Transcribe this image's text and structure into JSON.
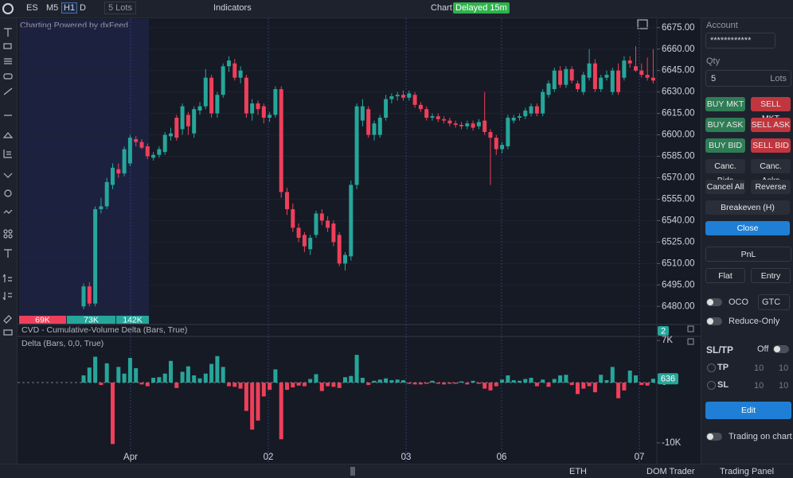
{
  "toolbar": {
    "symbol": "ES",
    "intervals": [
      "M5",
      "H1",
      "D"
    ],
    "lots": "5 Lots",
    "indicators": "Indicators",
    "chart": "Chart",
    "delayed": "Delayed 15m"
  },
  "chart_data": {
    "type": "candlestick",
    "watermark": "Charting Powered by dxFeed",
    "up_color": "#26a69a",
    "down_color": "#ef3f5a",
    "ylim": [
      6469,
      6681
    ],
    "yticks": [
      {
        "value": 6480,
        "label": "6480.00"
      },
      {
        "value": 6495,
        "label": "6495.00"
      },
      {
        "value": 6510,
        "label": "6510.00"
      },
      {
        "value": 6525,
        "label": "6525.00"
      },
      {
        "value": 6540,
        "label": "6540.00"
      },
      {
        "value": 6555,
        "label": "6555.00"
      },
      {
        "value": 6570,
        "label": "6570.00"
      },
      {
        "value": 6585,
        "label": "6585.00"
      },
      {
        "value": 6600,
        "label": "6600.00"
      },
      {
        "value": 6615,
        "label": "6615.00"
      },
      {
        "value": 6630,
        "label": "6630.00"
      },
      {
        "value": 6645,
        "label": "6645.00"
      },
      {
        "value": 6660,
        "label": "6660.00"
      },
      {
        "value": 6675,
        "label": "6675.00"
      }
    ],
    "x_labels": [
      "Apr",
      "02",
      "03",
      "06",
      "07"
    ],
    "volume_labels": [
      "69K",
      "73K",
      "142K"
    ],
    "candles": [
      [
        6480,
        6496,
        6478,
        6494
      ],
      [
        6494,
        6497,
        6480,
        6482
      ],
      [
        6482,
        6550,
        6480,
        6548
      ],
      [
        6548,
        6556,
        6545,
        6550
      ],
      [
        6550,
        6570,
        6548,
        6567
      ],
      [
        6565,
        6580,
        6562,
        6577
      ],
      [
        6576,
        6580,
        6570,
        6573
      ],
      [
        6573,
        6592,
        6571,
        6590
      ],
      [
        6580,
        6600,
        6578,
        6598
      ],
      [
        6597,
        6599,
        6592,
        6595
      ],
      [
        6595,
        6597,
        6590,
        6591
      ],
      [
        6592,
        6594,
        6583,
        6585
      ],
      [
        6584,
        6588,
        6582,
        6586
      ],
      [
        6586,
        6592,
        6584,
        6590
      ],
      [
        6588,
        6602,
        6586,
        6600
      ],
      [
        6599,
        6605,
        6596,
        6601
      ],
      [
        6612,
        6614,
        6596,
        6598
      ],
      [
        6604,
        6622,
        6600,
        6620
      ],
      [
        6614,
        6616,
        6600,
        6606
      ],
      [
        6601,
        6620,
        6598,
        6618
      ],
      [
        6617,
        6623,
        6614,
        6620
      ],
      [
        6620,
        6646,
        6618,
        6640
      ],
      [
        6640,
        6642,
        6612,
        6615
      ],
      [
        6615,
        6630,
        6612,
        6628
      ],
      [
        6628,
        6650,
        6626,
        6648
      ],
      [
        6648,
        6655,
        6644,
        6652
      ],
      [
        6650,
        6653,
        6638,
        6640
      ],
      [
        6640,
        6648,
        6636,
        6645
      ],
      [
        6640,
        6642,
        6612,
        6615
      ],
      [
        6615,
        6625,
        6610,
        6622
      ],
      [
        6622,
        6624,
        6614,
        6618
      ],
      [
        6620,
        6622,
        6608,
        6612
      ],
      [
        6612,
        6616,
        6609,
        6614
      ],
      [
        6614,
        6634,
        6612,
        6632
      ],
      [
        6632,
        6634,
        6556,
        6560
      ],
      [
        6560,
        6563,
        6544,
        6548
      ],
      [
        6548,
        6552,
        6532,
        6535
      ],
      [
        6535,
        6538,
        6525,
        6528
      ],
      [
        6530,
        6532,
        6518,
        6522
      ],
      [
        6520,
        6530,
        6516,
        6528
      ],
      [
        6530,
        6547,
        6528,
        6545
      ],
      [
        6545,
        6548,
        6537,
        6540
      ],
      [
        6540,
        6543,
        6532,
        6535
      ],
      [
        6538,
        6540,
        6522,
        6525
      ],
      [
        6530,
        6532,
        6508,
        6510
      ],
      [
        6510,
        6518,
        6505,
        6516
      ],
      [
        6515,
        6568,
        6512,
        6565
      ],
      [
        6565,
        6622,
        6562,
        6620
      ],
      [
        6610,
        6625,
        6606,
        6620
      ],
      [
        6618,
        6620,
        6598,
        6600
      ],
      [
        6600,
        6610,
        6596,
        6608
      ],
      [
        6600,
        6614,
        6598,
        6612
      ],
      [
        6612,
        6628,
        6610,
        6625
      ],
      [
        6625,
        6629,
        6622,
        6627
      ],
      [
        6627,
        6630,
        6624,
        6628
      ],
      [
        6628,
        6631,
        6624,
        6626
      ],
      [
        6626,
        6631,
        6624,
        6629
      ],
      [
        6628,
        6630,
        6619,
        6621
      ],
      [
        6621,
        6623,
        6616,
        6618
      ],
      [
        6618,
        6620,
        6610,
        6612
      ],
      [
        6612,
        6615,
        6610,
        6613
      ],
      [
        6613,
        6615,
        6609,
        6611
      ],
      [
        6611,
        6613,
        6608,
        6610
      ],
      [
        6610,
        6612,
        6606,
        6608
      ],
      [
        6608,
        6610,
        6605,
        6607
      ],
      [
        6607,
        6609,
        6604,
        6606
      ],
      [
        6606,
        6610,
        6604,
        6608
      ],
      [
        6608,
        6610,
        6603,
        6605
      ],
      [
        6606,
        6611,
        6604,
        6609
      ],
      [
        6610,
        6630,
        6600,
        6602
      ],
      [
        6602,
        6604,
        6565,
        6598
      ],
      [
        6598,
        6600,
        6586,
        6590
      ],
      [
        6590,
        6595,
        6587,
        6593
      ],
      [
        6592,
        6614,
        6590,
        6612
      ],
      [
        6610,
        6614,
        6608,
        6612
      ],
      [
        6612,
        6615,
        6610,
        6613
      ],
      [
        6613,
        6619,
        6611,
        6617
      ],
      [
        6615,
        6622,
        6613,
        6620
      ],
      [
        6620,
        6622,
        6613,
        6615
      ],
      [
        6615,
        6632,
        6613,
        6630
      ],
      [
        6628,
        6638,
        6626,
        6636
      ],
      [
        6632,
        6647,
        6630,
        6645
      ],
      [
        6645,
        6648,
        6633,
        6635
      ],
      [
        6635,
        6648,
        6633,
        6646
      ],
      [
        6646,
        6648,
        6636,
        6638
      ],
      [
        6636,
        6638,
        6630,
        6632
      ],
      [
        6630,
        6644,
        6628,
        6642
      ],
      [
        6640,
        6660,
        6638,
        6650
      ],
      [
        6650,
        6653,
        6630,
        6632
      ],
      [
        6632,
        6642,
        6630,
        6640
      ],
      [
        6640,
        6645,
        6638,
        6642
      ],
      [
        6630,
        6647,
        6628,
        6645
      ],
      [
        6645,
        6650,
        6628,
        6630
      ],
      [
        6640,
        6655,
        6638,
        6652
      ],
      [
        6652,
        6655,
        6647,
        6650
      ],
      [
        6648,
        6662,
        6644,
        6645
      ],
      [
        6645,
        6650,
        6640,
        6642
      ],
      [
        6642,
        6654,
        6638,
        6640
      ],
      [
        6640,
        6660,
        6636,
        6638
      ]
    ],
    "cvd": {
      "title": "CVD - Cumulative-Volume Delta (Bars, True)",
      "value": "2"
    },
    "delta": {
      "title": "Delta (Bars, 0,0, True)",
      "ylim": [
        -12400,
        7400
      ],
      "yticks": [
        {
          "value": 7000,
          "label": "7K"
        },
        0,
        {
          "value": -10000,
          "label": "-10K"
        }
      ],
      "values": [
        1200,
        2500,
        4300,
        -400,
        3200,
        -10200,
        2600,
        1500,
        4100,
        2400,
        -300,
        -600,
        800,
        900,
        1500,
        3600,
        -900,
        1800,
        2700,
        1200,
        700,
        1500,
        3100,
        4400,
        2600,
        -600,
        -700,
        -1000,
        -4700,
        -7800,
        -6300,
        -2300,
        -1200,
        2200,
        -9400,
        -1200,
        -800,
        -500,
        -600,
        600,
        1400,
        -1400,
        -600,
        -700,
        -900,
        900,
        1100,
        4600,
        800,
        -400,
        300,
        500,
        700,
        400,
        500,
        400,
        -200,
        -300,
        -300,
        -200,
        300,
        -200,
        -300,
        -200,
        -200,
        200,
        -300,
        300,
        -200,
        -1000,
        -1300,
        -600,
        500,
        1200,
        400,
        300,
        600,
        800,
        -600,
        500,
        -700,
        600,
        1200,
        1300,
        -400,
        -1900,
        -1000,
        -600,
        -1600,
        1300,
        400,
        2600,
        -2600,
        -1300,
        2000,
        1200,
        -400,
        -500,
        636
      ]
    }
  },
  "panel": {
    "account_label": "Account",
    "account": "************",
    "qty_label": "Qty",
    "qty": "5",
    "qty_unit": "Lots",
    "buttons": [
      [
        "BUY MKT",
        "SELL MKT"
      ],
      [
        "BUY ASK",
        "SELL ASK"
      ],
      [
        "BUY BID",
        "SELL BID"
      ],
      [
        "Canc. Bids",
        "Canc. Asks"
      ],
      [
        "Cancel All",
        "Reverse"
      ]
    ],
    "breakeven": "Breakeven (H)",
    "close": "Close",
    "pnl": "PnL",
    "flat": "Flat",
    "entry": "Entry",
    "oco": "OCO",
    "tif": "GTC",
    "reduce_only": "Reduce-Only",
    "sltp": "SL/TP",
    "sltp_state": "Off",
    "tp": "TP",
    "tp_values": [
      "10",
      "10"
    ],
    "sl": "SL",
    "sl_values": [
      "10",
      "10"
    ],
    "edit": "Edit",
    "trading_on_chart": "Trading on chart"
  },
  "bottom": {
    "session": "ETH",
    "dom": "DOM Trader",
    "trading_panel": "Trading Panel"
  }
}
